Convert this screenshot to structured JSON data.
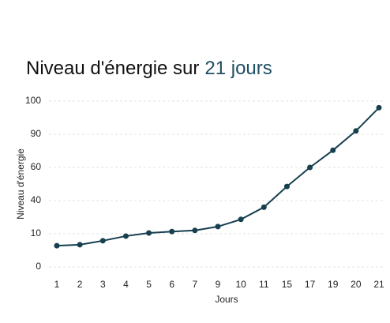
{
  "chart_data": {
    "type": "line",
    "title": "Niveau d'énergie sur",
    "title_highlight": "21 jours",
    "x_label": "Jours",
    "y_label": "Niveau d'énergie",
    "categories": [
      "1",
      "2",
      "3",
      "4",
      "5",
      "6",
      "7",
      "9",
      "10",
      "11",
      "15",
      "17",
      "19",
      "20",
      "21"
    ],
    "series": [
      {
        "name": "Niveau d'énergie",
        "color": "#163f4f",
        "values": [
          6.4,
          6.7,
          7.9,
          9.3,
          10.7,
          12,
          13,
          16.5,
          23,
          34,
          48.5,
          60,
          75.5,
          91,
          98
        ]
      }
    ],
    "ylim": [
      0,
      100
    ],
    "yticks": [
      0,
      10,
      40,
      60,
      90,
      100
    ],
    "grid": true
  }
}
